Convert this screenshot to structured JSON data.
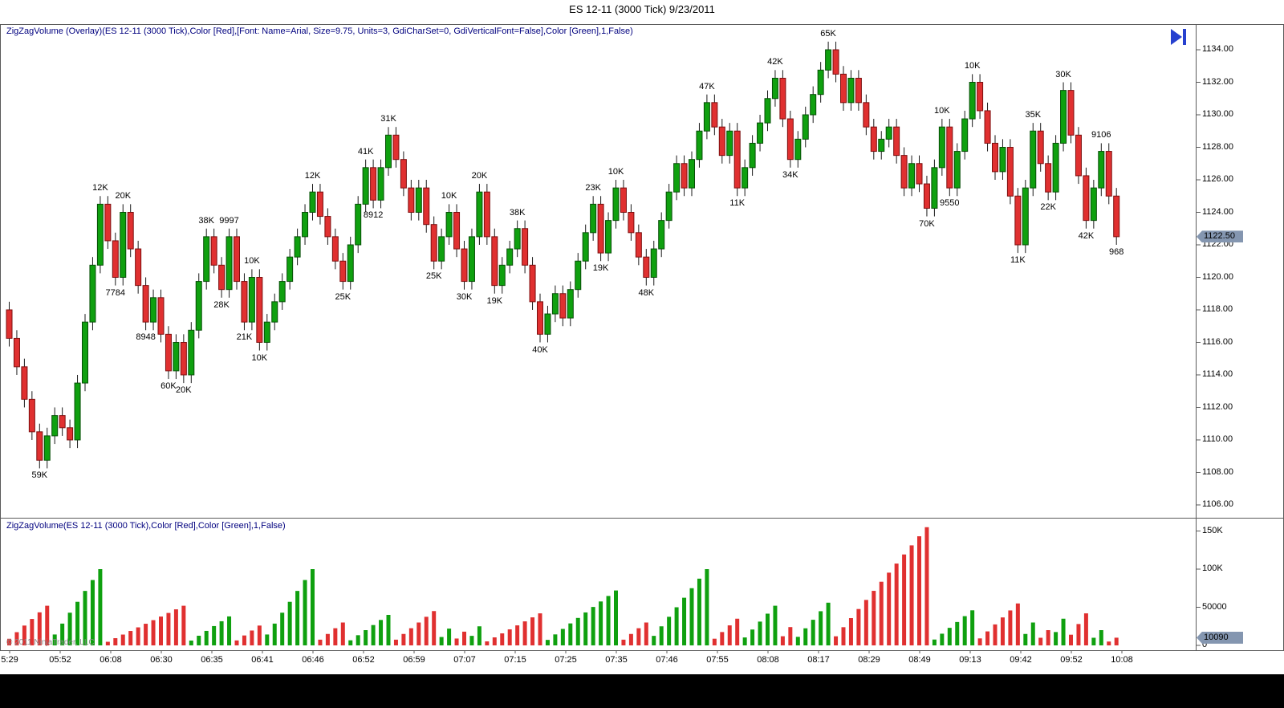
{
  "window": {
    "title": "ES 12-11 (3000 Tick)  9/23/2011"
  },
  "price_panel": {
    "indicator_label": "ZigZagVolume (Overlay)(ES 12-11 (3000 Tick),Color [Red],[Font: Name=Arial, Size=9.75, Units=3, GdiCharSet=0, GdiVerticalFont=False],Color [Green],1,False)",
    "price_marker": "1122.50",
    "axis_labels": [
      "1134.00",
      "1132.00",
      "1130.00",
      "1128.00",
      "1126.00",
      "1124.00",
      "1122.00",
      "1120.00",
      "1118.00",
      "1116.00",
      "1114.00",
      "1112.00",
      "1110.00",
      "1108.00",
      "1106.00"
    ]
  },
  "volume_panel": {
    "indicator_label": "ZigZagVolume(ES 12-11 (3000 Tick),Color [Red],Color [Green],1,False)",
    "axis_labels": [
      [
        "150K",
        150000
      ],
      [
        "100K",
        100000
      ],
      [
        "50000",
        50000
      ],
      [
        "0",
        0
      ]
    ],
    "volume_marker": "10090",
    "volume_marker_value": 10090,
    "copyright": "© 2011 NinjaTrader, LLC"
  },
  "time_axis": [
    "5:29",
    "05:52",
    "06:08",
    "06:30",
    "06:35",
    "06:41",
    "06:46",
    "06:52",
    "06:59",
    "07:07",
    "07:15",
    "07:25",
    "07:35",
    "07:46",
    "07:55",
    "08:08",
    "08:17",
    "08:29",
    "08:49",
    "09:13",
    "09:42",
    "09:52",
    "10:08"
  ],
  "colors": {
    "up": "#0fa00f",
    "up_border": "#064e06",
    "down": "#e03030",
    "down_border": "#7c0e0e",
    "wick": "#1a1a1a",
    "marker_bg": "#8496b0",
    "indicator_text": "#00007f",
    "icon": "#2741cf",
    "border": "#5a5a5a"
  },
  "chart_data": {
    "type": "candlestick+volume",
    "instrument": "ES 12-11 (3000 Tick)",
    "date": "9/23/2011",
    "price_range": [
      1106,
      1134
    ],
    "last_price": 1122.5,
    "volume_range": [
      0,
      150000
    ],
    "closes": [
      1116.25,
      1114.5,
      1112.5,
      1110.5,
      1108.75,
      1110.25,
      1111.5,
      1110.75,
      1110,
      1113.5,
      1117.25,
      1120.75,
      1124.5,
      1122.25,
      1120,
      1124,
      1121.75,
      1119.5,
      1117.25,
      1118.75,
      1116.5,
      1114.25,
      1116,
      1114,
      1116.75,
      1119.75,
      1122.5,
      1120.75,
      1119.25,
      1122.5,
      1119.75,
      1117.25,
      1120,
      1116,
      1117.25,
      1118.5,
      1119.75,
      1121.25,
      1122.5,
      1124,
      1125.25,
      1123.75,
      1122.5,
      1121,
      1119.75,
      1122,
      1124.5,
      1126.75,
      1124.75,
      1126.75,
      1128.75,
      1127.25,
      1125.5,
      1124,
      1125.5,
      1123.25,
      1121,
      1122.5,
      1124,
      1121.75,
      1119.75,
      1122.5,
      1125.25,
      1122.5,
      1119.5,
      1120.75,
      1121.75,
      1123,
      1120.75,
      1118.5,
      1116.5,
      1117.75,
      1119,
      1117.5,
      1119.25,
      1121,
      1122.75,
      1124.5,
      1121.5,
      1123.5,
      1125.5,
      1124,
      1122.75,
      1121.25,
      1120,
      1121.75,
      1123.5,
      1125.25,
      1127,
      1125.5,
      1127.25,
      1129,
      1130.75,
      1129.25,
      1127.5,
      1129,
      1125.5,
      1126.75,
      1128.25,
      1129.5,
      1131,
      1132.25,
      1129.75,
      1127.25,
      1128.5,
      1130,
      1131.25,
      1132.75,
      1134,
      1132.5,
      1130.75,
      1132.25,
      1130.75,
      1129.25,
      1127.75,
      1128.5,
      1129.25,
      1127.5,
      1125.5,
      1127,
      1125.75,
      1124.25,
      1126.75,
      1129.25,
      1125.5,
      1127.75,
      1129.75,
      1132,
      1130.25,
      1128.25,
      1126.5,
      1128,
      1125,
      1122,
      1125.5,
      1129,
      1127,
      1125.25,
      1128.25,
      1131.5,
      1128.75,
      1126.25,
      1123.5,
      1125.5,
      1127.75,
      1125,
      1122.5
    ],
    "swings": [
      [
        4,
        "59K",
        "low"
      ],
      [
        12,
        "12K",
        "high"
      ],
      [
        14,
        "7784",
        "low"
      ],
      [
        15,
        "20K",
        "high"
      ],
      [
        18,
        "8948",
        "low"
      ],
      [
        21,
        "60K",
        "low"
      ],
      [
        23,
        "20K",
        "low"
      ],
      [
        26,
        "38K",
        "high"
      ],
      [
        28,
        "28K",
        "low"
      ],
      [
        29,
        "9997",
        "high"
      ],
      [
        31,
        "21K",
        "low"
      ],
      [
        32,
        "10K",
        "high"
      ],
      [
        33,
        "10K",
        "low"
      ],
      [
        40,
        "12K",
        "high"
      ],
      [
        44,
        "25K",
        "low"
      ],
      [
        47,
        "41K",
        "high"
      ],
      [
        48,
        "8912",
        "low"
      ],
      [
        50,
        "31K",
        "high"
      ],
      [
        56,
        "25K",
        "low"
      ],
      [
        58,
        "10K",
        "high"
      ],
      [
        60,
        "30K",
        "low"
      ],
      [
        62,
        "20K",
        "high"
      ],
      [
        64,
        "19K",
        "low"
      ],
      [
        67,
        "38K",
        "high"
      ],
      [
        70,
        "40K",
        "low"
      ],
      [
        77,
        "23K",
        "high"
      ],
      [
        78,
        "19K",
        "low"
      ],
      [
        80,
        "10K",
        "high"
      ],
      [
        84,
        "48K",
        "low"
      ],
      [
        92,
        "47K",
        "high"
      ],
      [
        96,
        "11K",
        "low"
      ],
      [
        101,
        "42K",
        "high"
      ],
      [
        103,
        "34K",
        "low"
      ],
      [
        108,
        "65K",
        "high"
      ],
      [
        121,
        "70K",
        "low"
      ],
      [
        123,
        "10K",
        "high"
      ],
      [
        124,
        "9550",
        "low"
      ],
      [
        127,
        "10K",
        "high"
      ],
      [
        133,
        "11K",
        "low"
      ],
      [
        135,
        "35K",
        "high"
      ],
      [
        137,
        "22K",
        "low"
      ],
      [
        139,
        "30K",
        "high"
      ],
      [
        142,
        "42K",
        "low"
      ],
      [
        144,
        "9106",
        "high"
      ],
      [
        146,
        "968",
        "low"
      ]
    ],
    "volume_groups": [
      [
        "r",
        0,
        5,
        52000
      ],
      [
        "g",
        6,
        12,
        100000
      ],
      [
        "r",
        13,
        23,
        52000
      ],
      [
        "g",
        24,
        29,
        38000
      ],
      [
        "r",
        30,
        33,
        26000
      ],
      [
        "g",
        34,
        40,
        100000
      ],
      [
        "r",
        41,
        44,
        30000
      ],
      [
        "g",
        45,
        50,
        40000
      ],
      [
        "r",
        51,
        56,
        45000
      ],
      [
        "g",
        57,
        58,
        22000
      ],
      [
        "r",
        59,
        60,
        18000
      ],
      [
        "g",
        61,
        62,
        25000
      ],
      [
        "r",
        63,
        70,
        42000
      ],
      [
        "g",
        71,
        80,
        72000
      ],
      [
        "r",
        81,
        84,
        30000
      ],
      [
        "g",
        85,
        92,
        100000
      ],
      [
        "r",
        93,
        96,
        35000
      ],
      [
        "g",
        97,
        101,
        52000
      ],
      [
        "r",
        102,
        103,
        24000
      ],
      [
        "g",
        104,
        108,
        56000
      ],
      [
        "r",
        109,
        121,
        155000
      ],
      [
        "g",
        122,
        127,
        46000
      ],
      [
        "r",
        128,
        133,
        55000
      ],
      [
        "g",
        134,
        135,
        30000
      ],
      [
        "r",
        136,
        137,
        20000
      ],
      [
        "g",
        138,
        139,
        35000
      ],
      [
        "r",
        140,
        142,
        42000
      ],
      [
        "g",
        143,
        144,
        20000
      ],
      [
        "r",
        145,
        146,
        10090
      ]
    ]
  }
}
